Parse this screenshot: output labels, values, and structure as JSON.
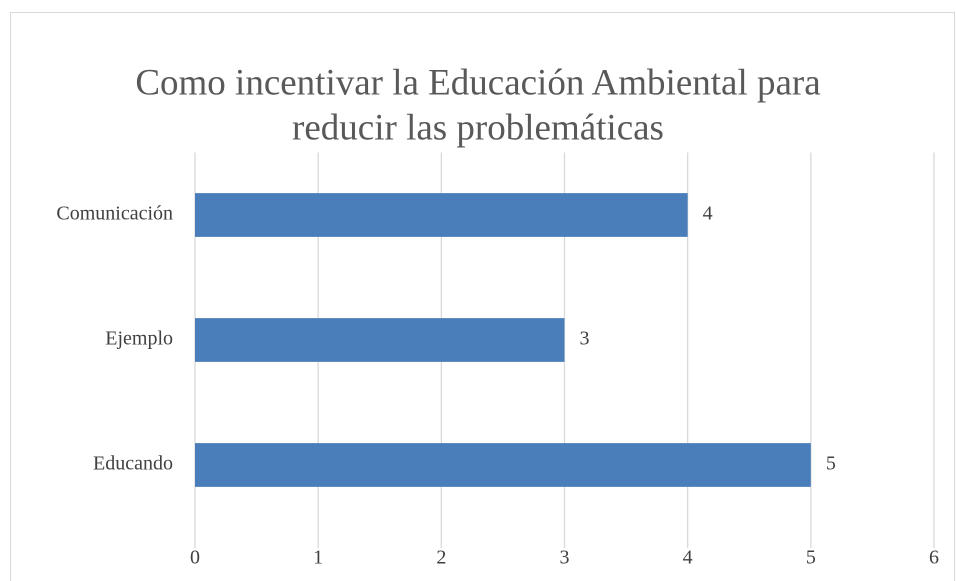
{
  "chart_data": {
    "type": "bar",
    "orientation": "horizontal",
    "title": [
      "Como incentivar la Educación Ambiental para",
      "reducir las problemáticas"
    ],
    "categories": [
      "Comunicación",
      "Ejemplo",
      "Educando"
    ],
    "values": [
      4,
      3,
      5
    ],
    "color": "#4a7ebb",
    "xlim": [
      0,
      6
    ],
    "xticks": [
      0,
      1,
      2,
      3,
      4,
      5,
      6
    ],
    "grid": true
  }
}
